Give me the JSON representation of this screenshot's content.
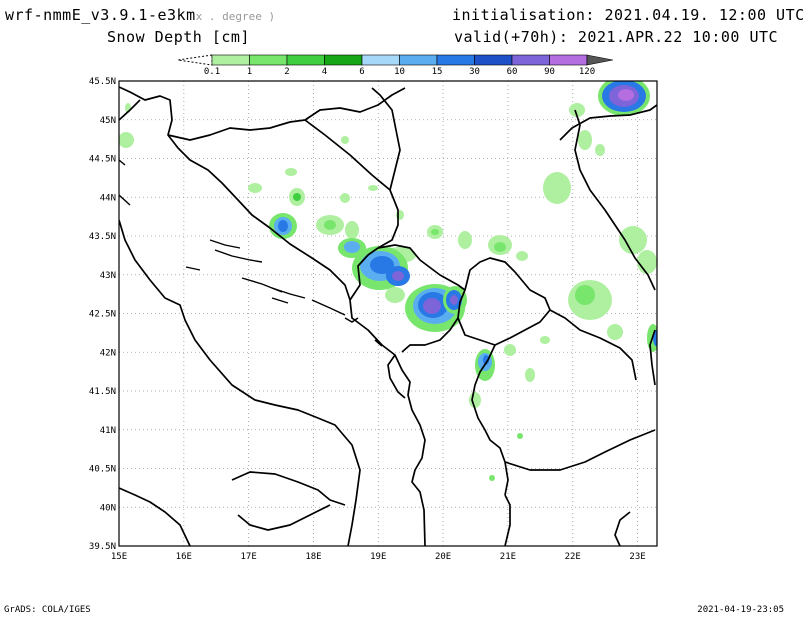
{
  "header": {
    "model": "wrf-nmmE_v3.9.1-e3km",
    "grid_note": "x . degree )",
    "field": "Snow Depth [cm]",
    "init": "initialisation: 2021.04.19.  12:00 UTC",
    "valid": "valid(+70h): 2021.APR.22 10:00 UTC"
  },
  "legend": {
    "labels": [
      "0.1",
      "1",
      "2",
      "4",
      "6",
      "10",
      "15",
      "30",
      "60",
      "90",
      "120"
    ],
    "colors": [
      "#aef0a0",
      "#78e66c",
      "#3fce3f",
      "#16a516",
      "#a6d8fa",
      "#5aaef0",
      "#2878e6",
      "#1e50c8",
      "#7d64d8",
      "#b46ee0",
      "#555555"
    ]
  },
  "axes": {
    "lat_labels": [
      "45.5N",
      "45N",
      "44.5N",
      "44N",
      "43.5N",
      "43N",
      "42.5N",
      "42N",
      "41.5N",
      "41N",
      "40.5N",
      "40N",
      "39.5N"
    ],
    "lon_labels": [
      "15E",
      "16E",
      "17E",
      "18E",
      "19E",
      "20E",
      "21E",
      "22E",
      "23E"
    ]
  },
  "footer": {
    "left": "GrADS: COLA/IGES",
    "right": "2021-04-19-23:05"
  }
}
